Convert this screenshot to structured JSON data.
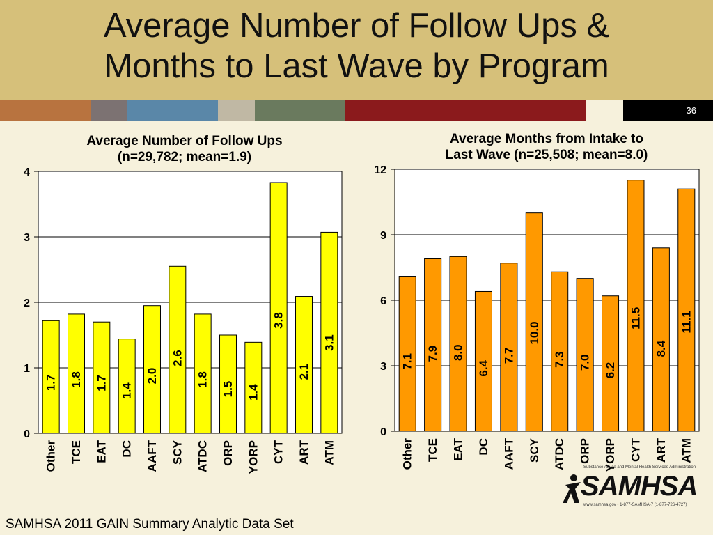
{
  "slide": {
    "title_line1": "Average Number of Follow Ups &",
    "title_line2": "Months to Last Wave by Program",
    "slide_number": "36",
    "footer": "SAMHSA 2011 GAIN Summary Analytic Data Set",
    "logo_text": "SAMHSA",
    "logo_tagline": "Substance Abuse and Mental Health Services Administration",
    "logo_contact": "www.samhsa.gov • 1-877-SAMHSA-7 (1-877-726-4727)",
    "colors": {
      "header_bg": "#d6c07a",
      "slide_bg": "#f6f1dc",
      "bar_segments": [
        "#b8733f",
        "#7c7272",
        "#5a87a8",
        "#c0b8a4",
        "#6a7a5e",
        "#8b1a1c",
        "#f6f1dc",
        "#000000"
      ]
    }
  },
  "chart_data": [
    {
      "type": "bar",
      "title_line1": "Average Number of Follow Ups",
      "title_line2": "(n=29,782; mean=1.9)",
      "categories": [
        "Other",
        "TCE",
        "EAT",
        "DC",
        "AAFT",
        "SCY",
        "ATDC",
        "ORP",
        "YORP",
        "CYT",
        "ART",
        "ATM"
      ],
      "values": [
        1.72,
        1.82,
        1.7,
        1.44,
        1.95,
        2.55,
        1.82,
        1.5,
        1.39,
        3.83,
        2.09,
        3.07
      ],
      "labels": [
        "1.7",
        "1.8",
        "1.7",
        "1.4",
        "2.0",
        "2.6",
        "1.8",
        "1.5",
        "1.4",
        "3.8",
        "2.1",
        "3.1"
      ],
      "ylim": [
        0,
        4
      ],
      "yticks": [
        "0",
        "1",
        "2",
        "3",
        "4"
      ],
      "grid": true,
      "color": "#ffff00"
    },
    {
      "type": "bar",
      "title_line1": "Average Months from Intake to",
      "title_line2": "Last Wave (n=25,508; mean=8.0)",
      "categories": [
        "Other",
        "TCE",
        "EAT",
        "DC",
        "AAFT",
        "SCY",
        "ATDC",
        "ORP",
        "YORP",
        "CYT",
        "ART",
        "ATM"
      ],
      "values": [
        7.1,
        7.9,
        8.0,
        6.4,
        7.7,
        10.0,
        7.3,
        7.0,
        6.2,
        11.5,
        8.4,
        11.1
      ],
      "labels": [
        "7.1",
        "7.9",
        "8.0",
        "6.4",
        "7.7",
        "10.0",
        "7.3",
        "7.0",
        "6.2",
        "11.5",
        "8.4",
        "11.1"
      ],
      "ylim": [
        0,
        12
      ],
      "yticks": [
        "0",
        "3",
        "6",
        "9",
        "12"
      ],
      "grid": true,
      "color": "#ff9900"
    }
  ]
}
